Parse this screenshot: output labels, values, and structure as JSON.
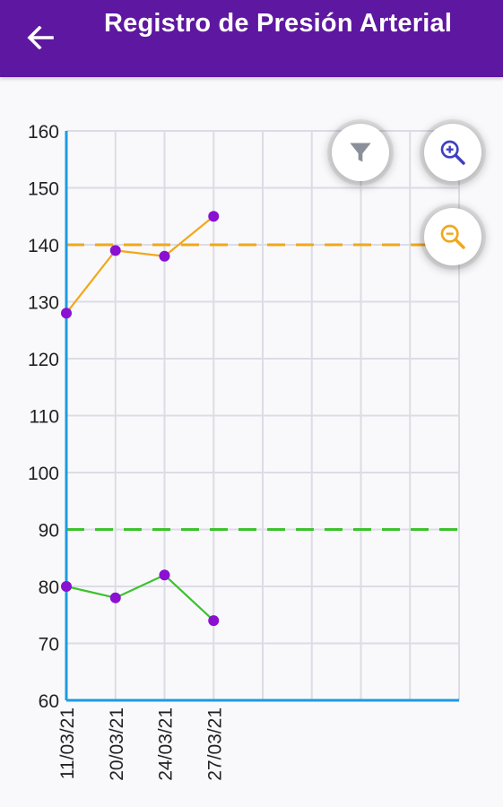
{
  "header": {
    "title": "Registro de Presión Arterial",
    "back_icon": "arrow-left-icon",
    "background": "#5e17a0"
  },
  "controls": {
    "filter_icon": "filter-icon",
    "zoom_in_icon": "zoom-in-icon",
    "zoom_out_icon": "zoom-out-icon",
    "filter_color": "#8a8f99",
    "zoom_in_color": "#3f3fc4",
    "zoom_out_color": "#f0a81c"
  },
  "chart_data": {
    "type": "line",
    "categories": [
      "11/03/21",
      "20/03/21",
      "24/03/21",
      "27/03/21"
    ],
    "x_slots": 8,
    "ylim": [
      60,
      160
    ],
    "yticks": [
      60,
      70,
      80,
      90,
      100,
      110,
      120,
      130,
      140,
      150,
      160
    ],
    "series": [
      {
        "values": [
          128,
          139,
          138,
          145
        ],
        "color": "#f0a81c"
      },
      {
        "values": [
          80,
          78,
          82,
          74
        ],
        "color": "#3cc22c"
      }
    ],
    "marker_color": "#8a10d2",
    "thresholds": [
      {
        "value": 140,
        "color": "#f0a81c"
      },
      {
        "value": 90,
        "color": "#3cc22c"
      }
    ],
    "axis_color": "#1e9be2",
    "grid": true,
    "grid_color": "#dcdce6"
  }
}
